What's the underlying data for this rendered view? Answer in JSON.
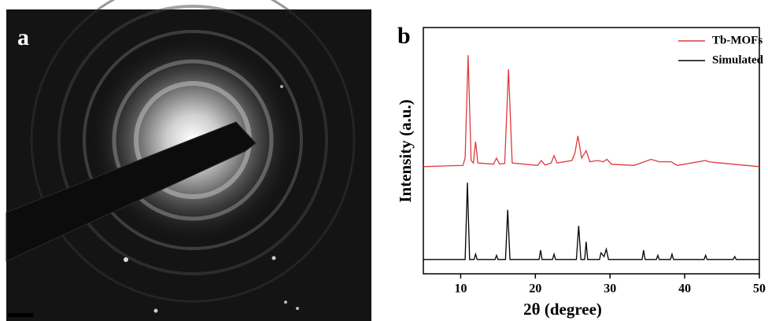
{
  "image_panel": {
    "label": "a"
  },
  "chart_data": {
    "type": "line",
    "panel_label": "b",
    "xlabel": "2θ (degree)",
    "ylabel": "Intensity (a.u.)",
    "xlim": [
      5,
      50
    ],
    "xticks": [
      10,
      20,
      30,
      40,
      50
    ],
    "ylim": [
      0,
      100
    ],
    "legend": "upper right",
    "series": [
      {
        "name": "Tb-MOFs",
        "color": "#e0393e",
        "x": [
          5,
          8,
          10.3,
          10.6,
          11.0,
          11.4,
          11.7,
          12.0,
          12.3,
          14.4,
          14.8,
          15.2,
          15.9,
          16.4,
          16.9,
          20.3,
          20.8,
          21.3,
          22.1,
          22.5,
          22.9,
          24.9,
          25.3,
          25.7,
          26.2,
          26.8,
          27.3,
          28.3,
          29.1,
          29.6,
          30.2,
          33.2,
          34.6,
          35.5,
          36.6,
          38.2,
          39,
          42.8,
          43.2,
          44.8,
          46.5,
          50
        ],
        "values": [
          43.5,
          43.8,
          44,
          47,
          88.8,
          46,
          45,
          53.7,
          45,
          44.5,
          47,
          44.6,
          44.8,
          83,
          45,
          44,
          46,
          44.2,
          45,
          48,
          45,
          46,
          49,
          56,
          47,
          50,
          45.5,
          46,
          45.5,
          46.5,
          44.5,
          44,
          45.5,
          46.5,
          45.5,
          45.5,
          44,
          46,
          45.5,
          45,
          44.5,
          43.5
        ]
      },
      {
        "name": "Simulated",
        "color": "#000000",
        "x": [
          5,
          10.6,
          10.9,
          11.2,
          11.8,
          12.0,
          12.2,
          14.6,
          14.8,
          15.0,
          16.0,
          16.3,
          16.6,
          20.5,
          20.7,
          20.9,
          22.3,
          22.5,
          22.7,
          25.5,
          25.8,
          26.1,
          26.6,
          26.8,
          27.0,
          28.6,
          28.8,
          29.2,
          29.5,
          29.8,
          34.3,
          34.5,
          34.7,
          36.2,
          36.4,
          36.6,
          38.1,
          38.3,
          38.5,
          42.6,
          42.8,
          43.0,
          46.5,
          46.7,
          46.9,
          50
        ],
        "values": [
          5.8,
          5.8,
          37,
          5.8,
          5.8,
          8,
          5.8,
          5.8,
          7.5,
          5.8,
          5.8,
          26,
          5.8,
          5.8,
          9.6,
          5.8,
          5.8,
          8,
          5.8,
          5.8,
          19.5,
          5.8,
          5.8,
          13,
          5.8,
          5.8,
          8.5,
          7,
          10,
          5.8,
          5.8,
          9.6,
          5.8,
          5.8,
          7.5,
          5.8,
          5.8,
          8,
          5.8,
          5.8,
          7.5,
          5.8,
          5.8,
          7,
          5.8,
          5.8
        ]
      }
    ]
  }
}
